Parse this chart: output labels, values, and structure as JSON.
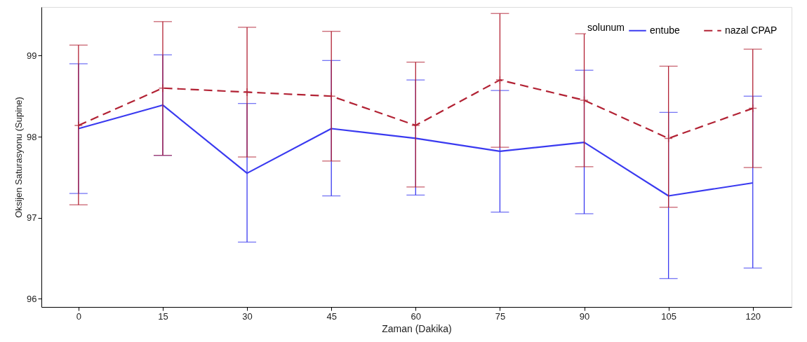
{
  "chart_data": {
    "type": "line",
    "xlabel": "Zaman (Dakika)",
    "ylabel": "Oksijen Saturasyonu (Supine)",
    "legend_title": "solunum",
    "legend": "top right",
    "grid": false,
    "x": [
      0,
      15,
      30,
      45,
      60,
      75,
      90,
      105,
      120
    ],
    "xlim": [
      -6.6,
      126.9
    ],
    "xticks": [
      0,
      15,
      30,
      45,
      60,
      75,
      90,
      105,
      120
    ],
    "ylim": [
      95.9,
      99.6
    ],
    "yticks": [
      96,
      97,
      98,
      99
    ],
    "series": [
      {
        "name": "entube",
        "color": "#3a3af0",
        "line_style": "solid",
        "marker": "none",
        "values": [
          98.1,
          98.39,
          97.55,
          98.1,
          97.98,
          97.82,
          97.93,
          97.27,
          97.43
        ],
        "errors": [
          [
            97.3,
            98.9
          ],
          [
            97.77,
            99.01
          ],
          [
            96.7,
            98.41
          ],
          [
            97.27,
            98.94
          ],
          [
            97.28,
            98.7
          ],
          [
            97.07,
            98.57
          ],
          [
            97.05,
            98.82
          ],
          [
            96.25,
            98.3
          ],
          [
            96.38,
            98.5
          ]
        ]
      },
      {
        "name": "nazal CPAP",
        "color": "#b22234",
        "line_style": "dashed",
        "marker": "cross",
        "values": [
          98.14,
          98.6,
          98.55,
          98.5,
          98.14,
          98.7,
          98.45,
          97.98,
          98.35
        ],
        "errors": [
          [
            97.16,
            99.13
          ],
          [
            97.77,
            99.42
          ],
          [
            97.75,
            99.35
          ],
          [
            97.7,
            99.3
          ],
          [
            97.38,
            98.92
          ],
          [
            97.87,
            99.52
          ],
          [
            97.63,
            99.27
          ],
          [
            97.13,
            98.87
          ],
          [
            97.62,
            99.08
          ]
        ]
      }
    ]
  }
}
